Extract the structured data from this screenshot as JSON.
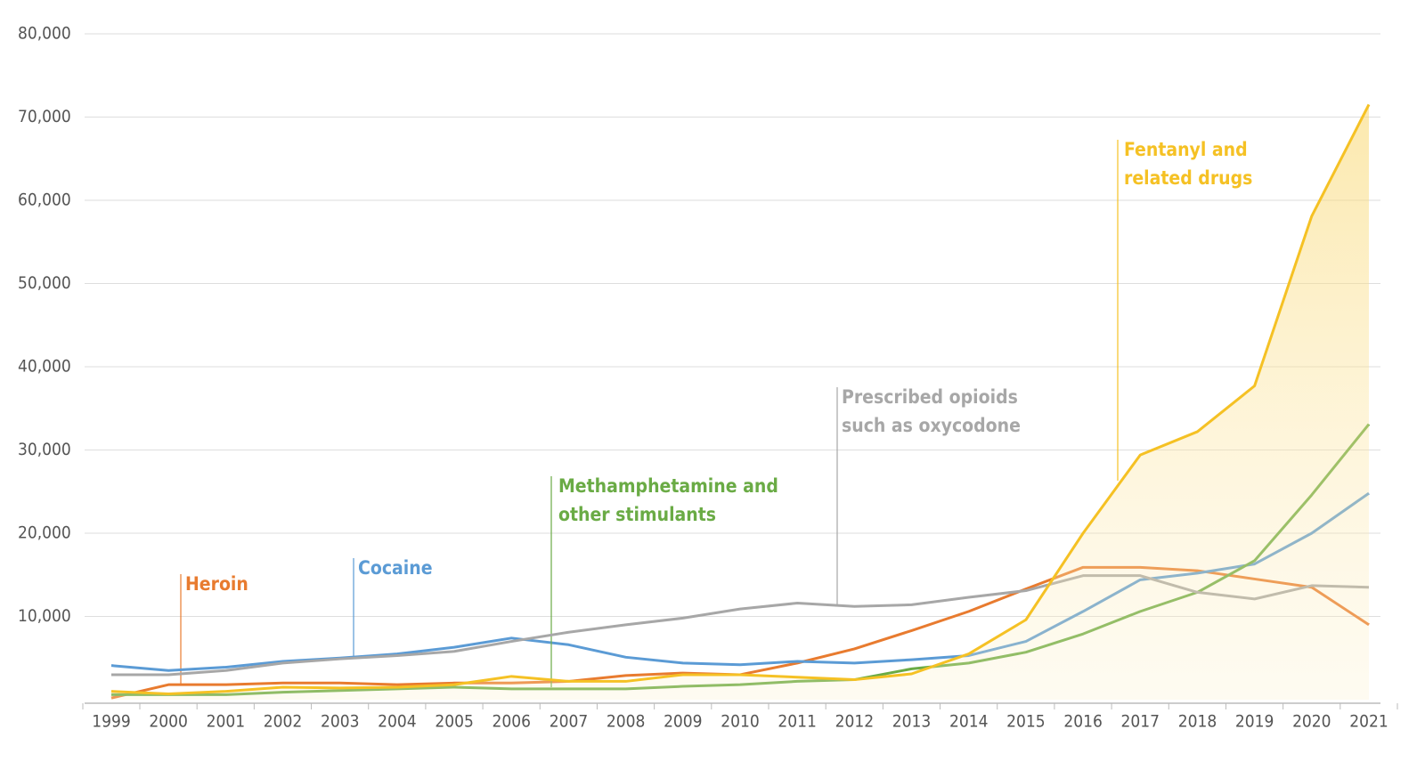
{
  "chart_data": {
    "type": "line",
    "categories": [
      "1999",
      "2000",
      "2001",
      "2002",
      "2003",
      "2004",
      "2005",
      "2006",
      "2007",
      "2008",
      "2009",
      "2010",
      "2011",
      "2012",
      "2013",
      "2014",
      "2015",
      "2016",
      "2017",
      "2018",
      "2019",
      "2020",
      "2021"
    ],
    "ylim": [
      0,
      80000
    ],
    "yticks": [
      {
        "value": 10000,
        "label": "10,000"
      },
      {
        "value": 20000,
        "label": "20,000"
      },
      {
        "value": 30000,
        "label": "30,000"
      },
      {
        "value": 40000,
        "label": "40,000"
      },
      {
        "value": 50000,
        "label": "50,000"
      },
      {
        "value": 60000,
        "label": "60,000"
      },
      {
        "value": 70000,
        "label": "70,000"
      },
      {
        "value": 80000,
        "label": "80,000"
      }
    ],
    "grid": true,
    "series": [
      {
        "name": "Heroin",
        "color": "#e87b2f",
        "values": [
          200,
          1800,
          1800,
          2000,
          2000,
          1800,
          2000,
          2000,
          2200,
          2900,
          3200,
          3000,
          4400,
          6100,
          8300,
          10600,
          13300,
          15900,
          15900,
          15500,
          14500,
          13500,
          9000
        ]
      },
      {
        "name": "Cocaine",
        "color": "#5b9bd5",
        "values": [
          4100,
          3500,
          3900,
          4600,
          5000,
          5500,
          6300,
          7400,
          6600,
          5100,
          4400,
          4200,
          4600,
          4400,
          4800,
          5300,
          7000,
          10600,
          14400,
          15200,
          16300,
          20000,
          24800
        ]
      },
      {
        "name": "Methamphetamine and other stimulants",
        "color": "#6aab45",
        "values": [
          600,
          600,
          600,
          900,
          1100,
          1300,
          1500,
          1300,
          1300,
          1300,
          1600,
          1800,
          2200,
          2400,
          3700,
          4400,
          5700,
          7900,
          10600,
          12900,
          16700,
          24600,
          33100
        ]
      },
      {
        "name": "Prescribed opioids such as oxycodone",
        "color": "#a7a7a7",
        "values": [
          3000,
          3000,
          3500,
          4400,
          4900,
          5300,
          5800,
          7000,
          8100,
          9000,
          9800,
          10900,
          11600,
          11200,
          11400,
          12300,
          13100,
          14900,
          14900,
          12900,
          12100,
          13700,
          13500
        ]
      },
      {
        "name": "Fentanyl and related drugs",
        "color": "#f5c124",
        "values": [
          1000,
          700,
          1000,
          1500,
          1400,
          1500,
          1800,
          2800,
          2200,
          2200,
          3000,
          3000,
          2700,
          2400,
          3100,
          5500,
          9600,
          20000,
          29400,
          32200,
          37700,
          58100,
          71500
        ],
        "area": true
      }
    ]
  }
}
